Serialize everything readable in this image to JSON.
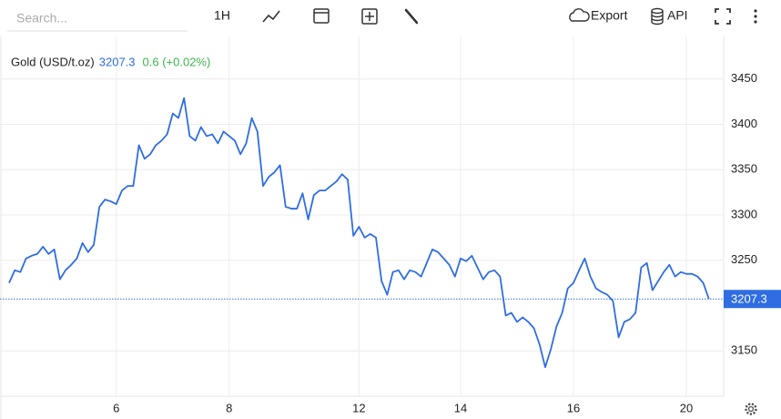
{
  "toolbar": {
    "search_placeholder": "Search...",
    "interval": "1H",
    "export": "Export",
    "api": "API"
  },
  "chart_data": {
    "type": "line",
    "title": "Gold (USD/t.oz)",
    "change": "0.6 (+0.02%)",
    "categories": [
      null,
      null,
      null,
      null,
      null,
      null,
      null,
      null,
      null,
      null,
      null,
      null,
      null,
      null,
      null,
      null,
      null,
      null,
      null,
      "6",
      null,
      null,
      null,
      null,
      null,
      null,
      null,
      null,
      null,
      null,
      null,
      null,
      null,
      null,
      null,
      null,
      null,
      null,
      null,
      "8",
      null,
      null,
      null,
      null,
      null,
      null,
      null,
      null,
      null,
      null,
      null,
      null,
      null,
      null,
      null,
      null,
      null,
      null,
      null,
      null,
      null,
      null,
      "12",
      null,
      null,
      null,
      null,
      null,
      null,
      null,
      null,
      null,
      null,
      null,
      null,
      null,
      null,
      null,
      null,
      null,
      "14",
      null,
      null,
      null,
      null,
      null,
      null,
      null,
      null,
      null,
      null,
      null,
      null,
      null,
      null,
      null,
      null,
      null,
      null,
      null,
      "16",
      null,
      null,
      null,
      null,
      null,
      null,
      null,
      null,
      null,
      null,
      null,
      null,
      null,
      null,
      null,
      null,
      null,
      null,
      null,
      "20",
      null,
      null,
      null,
      null
    ],
    "series": [
      {
        "name": "Gold (USD/t.oz)",
        "color": "#2f6de1",
        "values": [
          3225,
          3239,
          3237,
          3252,
          3255,
          3257,
          3265,
          3257,
          3262,
          3229,
          3239,
          3245,
          3252,
          3269,
          3259,
          3267,
          3309,
          3317,
          3315,
          3312,
          3327,
          3332,
          3332,
          3377,
          3362,
          3367,
          3377,
          3382,
          3389,
          3412,
          3407,
          3429,
          3387,
          3382,
          3397,
          3387,
          3389,
          3379,
          3392,
          3387,
          3382,
          3367,
          3379,
          3407,
          3392,
          3332,
          3342,
          3347,
          3355,
          3309,
          3307,
          3307,
          3324,
          3295,
          3322,
          3327,
          3327,
          3332,
          3337,
          3345,
          3339,
          3277,
          3287,
          3275,
          3279,
          3275,
          3227,
          3212,
          3237,
          3239,
          3229,
          3239,
          3237,
          3232,
          3247,
          3262,
          3259,
          3252,
          3245,
          3232,
          3252,
          3249,
          3255,
          3242,
          3229,
          3237,
          3239,
          3232,
          3189,
          3192,
          3182,
          3187,
          3182,
          3175,
          3157,
          3132,
          3152,
          3177,
          3192,
          3219,
          3225,
          3239,
          3252,
          3232,
          3219,
          3215,
          3212,
          3205,
          3165,
          3182,
          3185,
          3192,
          3242,
          3247,
          3217,
          3227,
          3237,
          3245,
          3232,
          3237,
          3235,
          3235,
          3232,
          3225,
          3207.3
        ]
      }
    ],
    "ylim": [
      3100,
      3497
    ],
    "yticks": [
      3150,
      3250,
      3300,
      3350,
      3400,
      3450
    ],
    "grid": true,
    "change_color": "#3cb44b"
  }
}
